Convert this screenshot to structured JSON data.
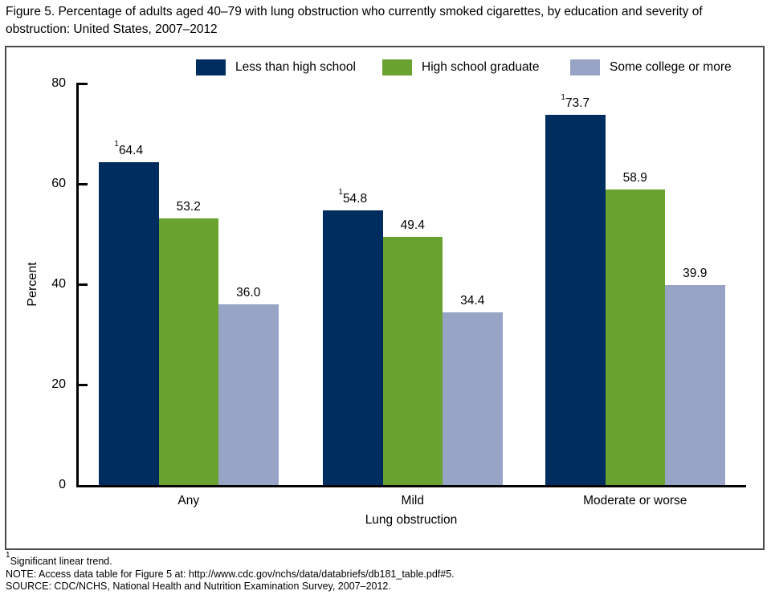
{
  "title": "Figure 5. Percentage of adults aged 40–79 with lung obstruction who currently smoked cigarettes, by education and severity of obstruction: United States, 2007–2012",
  "chart_data": {
    "type": "bar",
    "categories": [
      "Any",
      "Mild",
      "Moderate or worse"
    ],
    "series": [
      {
        "name": "Less than high school",
        "color": "#002d5f",
        "values": [
          64.4,
          54.8,
          73.7
        ],
        "value_labels": [
          "64.4",
          "54.8",
          "73.7"
        ],
        "footnote_marker": "1"
      },
      {
        "name": "High school graduate",
        "color": "#6aa22f",
        "values": [
          53.2,
          49.4,
          58.9
        ],
        "value_labels": [
          "53.2",
          "49.4",
          "58.9"
        ],
        "footnote_marker": ""
      },
      {
        "name": "Some college or more",
        "color": "#97a4c5",
        "values": [
          36.0,
          34.4,
          39.9
        ],
        "value_labels": [
          "36.0",
          "34.4",
          "39.9"
        ],
        "footnote_marker": ""
      }
    ],
    "xlabel": "Lung obstruction",
    "ylabel": "Percent",
    "ylim": [
      0,
      80
    ],
    "yticks": [
      0,
      20,
      40,
      60,
      80
    ],
    "legend_position": "top-inside",
    "grid": false,
    "axis_color": "#000000"
  },
  "footnotes": [
    {
      "sup": "1",
      "text": "Significant linear trend."
    },
    {
      "sup": "",
      "text": "NOTE: Access data table for Figure 5 at: http://www.cdc.gov/nchs/data/databriefs/db181_table.pdf#5."
    },
    {
      "sup": "",
      "text": "SOURCE: CDC/NCHS, National Health and Nutrition Examination Survey, 2007–2012."
    }
  ]
}
